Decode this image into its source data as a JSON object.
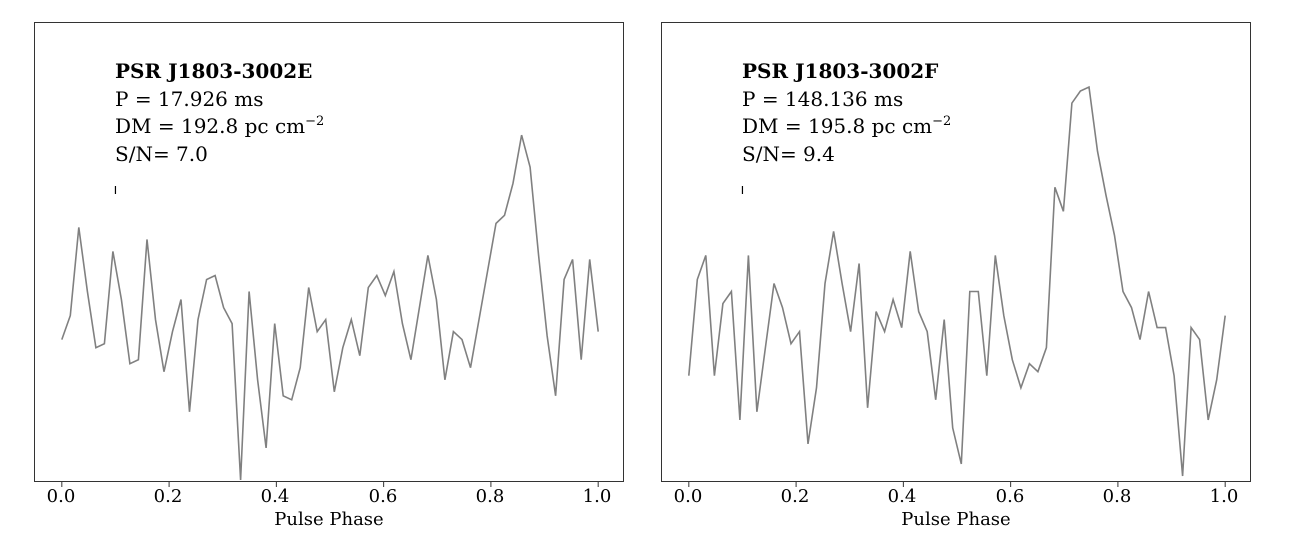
{
  "chart_data": [
    {
      "type": "line",
      "title": "PSR J1803-3002E",
      "annotations": [
        "PSR J1803-3002E",
        "P = 17.926 ms",
        "DM = 192.8 pc cm^-2",
        "S/N= 7.0"
      ],
      "period_ms": 17.926,
      "dm": 192.8,
      "dm_unit": "pc cm^-2",
      "snr": 7.0,
      "xlabel": "Pulse Phase",
      "ylabel": "",
      "xticks": [
        "0.0",
        "0.2",
        "0.4",
        "0.6",
        "0.8",
        "1.0"
      ],
      "xlim": [
        -0.05,
        1.05
      ],
      "yticks_shown": false,
      "grid": false,
      "line_color": "#808080",
      "n_bins": 64,
      "x_start": 0.0,
      "x_end": 1.0,
      "values": [
        0.35,
        0.41,
        0.63,
        0.47,
        0.33,
        0.34,
        0.57,
        0.45,
        0.29,
        0.3,
        0.6,
        0.4,
        0.27,
        0.37,
        0.45,
        0.17,
        0.4,
        0.5,
        0.51,
        0.43,
        0.39,
        0.0,
        0.47,
        0.25,
        0.08,
        0.39,
        0.21,
        0.2,
        0.28,
        0.48,
        0.37,
        0.4,
        0.22,
        0.33,
        0.4,
        0.31,
        0.48,
        0.51,
        0.46,
        0.52,
        0.39,
        0.3,
        0.43,
        0.56,
        0.45,
        0.25,
        0.37,
        0.35,
        0.28,
        0.4,
        0.52,
        0.64,
        0.66,
        0.74,
        0.86,
        0.78,
        0.56,
        0.36,
        0.21,
        0.5,
        0.55,
        0.3,
        0.55,
        0.37
      ]
    },
    {
      "type": "line",
      "title": "PSR J1803-3002F",
      "annotations": [
        "PSR J1803-3002F",
        "P = 148.136 ms",
        "DM = 195.8 pc cm^-2",
        "S/N= 9.4"
      ],
      "period_ms": 148.136,
      "dm": 195.8,
      "dm_unit": "pc cm^-2",
      "snr": 9.4,
      "xlabel": "Pulse Phase",
      "ylabel": "",
      "xticks": [
        "0.0",
        "0.2",
        "0.4",
        "0.6",
        "0.8",
        "1.0"
      ],
      "xlim": [
        -0.05,
        1.05
      ],
      "yticks_shown": false,
      "grid": false,
      "line_color": "#808080",
      "n_bins": 64,
      "x_start": 0.0,
      "x_end": 1.0,
      "values": [
        0.26,
        0.5,
        0.56,
        0.26,
        0.44,
        0.47,
        0.15,
        0.56,
        0.17,
        0.33,
        0.49,
        0.43,
        0.34,
        0.37,
        0.09,
        0.23,
        0.49,
        0.62,
        0.49,
        0.37,
        0.54,
        0.18,
        0.42,
        0.37,
        0.45,
        0.38,
        0.57,
        0.42,
        0.37,
        0.2,
        0.4,
        0.13,
        0.04,
        0.47,
        0.47,
        0.26,
        0.56,
        0.41,
        0.3,
        0.23,
        0.29,
        0.27,
        0.33,
        0.73,
        0.67,
        0.94,
        0.97,
        0.98,
        0.82,
        0.71,
        0.61,
        0.47,
        0.43,
        0.35,
        0.47,
        0.38,
        0.38,
        0.26,
        0.01,
        0.38,
        0.35,
        0.15,
        0.25,
        0.41
      ]
    }
  ],
  "panels": [
    {
      "title": "PSR J1803-3002E",
      "period": "P = 17.926 ms",
      "dm_prefix": "DM = 192.8 pc cm",
      "dm_exp": "−2",
      "snr": "S/N= 7.0",
      "xlabel": "Pulse Phase",
      "ticks": [
        "0.0",
        "0.2",
        "0.4",
        "0.6",
        "0.8",
        "1.0"
      ]
    },
    {
      "title": "PSR J1803-3002F",
      "period": "P = 148.136 ms",
      "dm_prefix": "DM = 195.8 pc cm",
      "dm_exp": "−2",
      "snr": "S/N= 9.4",
      "xlabel": "Pulse Phase",
      "ticks": [
        "0.0",
        "0.2",
        "0.4",
        "0.6",
        "0.8",
        "1.0"
      ]
    }
  ]
}
